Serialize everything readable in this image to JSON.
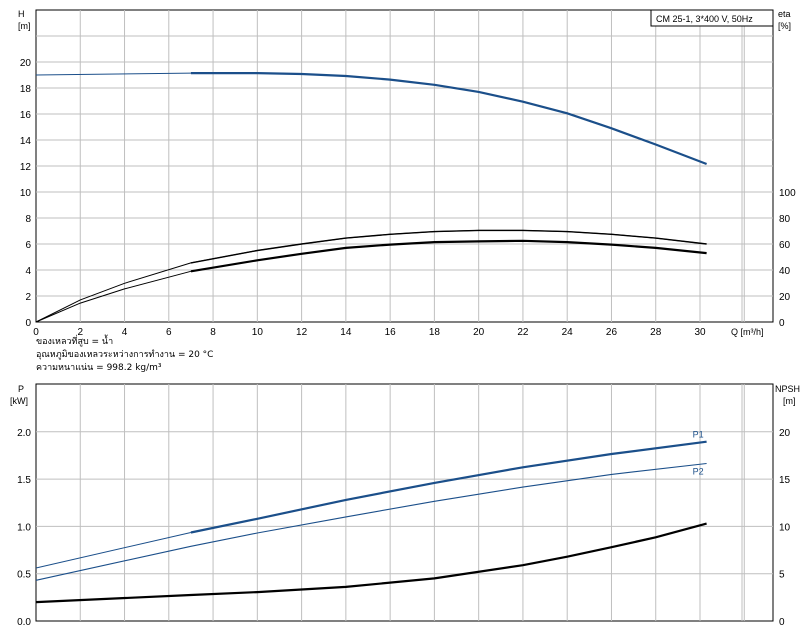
{
  "pump_title": "CM 25-1, 3*400 V, 50Hz",
  "fluid_notes": [
    "ของเหลวที่สูบ = น้ำ",
    "อุณหภูมิของเหลวระหว่างการทำงาน = 20 °C",
    "ความหนาแน่น = 998.2 kg/m³"
  ],
  "colors": {
    "blue": "#1b4f8a",
    "black": "#000000",
    "grid": "#bfbfbf"
  },
  "chart_data": [
    {
      "type": "line",
      "name": "head-efficiency",
      "x_axis": {
        "label": "Q [m³/h]",
        "range": [
          0,
          30
        ],
        "ticks": [
          "0",
          "2",
          "4",
          "6",
          "8",
          "10",
          "12",
          "14",
          "16",
          "18",
          "20",
          "22",
          "24",
          "26",
          "28",
          "30"
        ]
      },
      "y_left": {
        "label_line1": "H",
        "label_line2": "[m]",
        "range": [
          0,
          23
        ],
        "ticks": [
          "0",
          "2",
          "4",
          "6",
          "8",
          "10",
          "12",
          "14",
          "16",
          "18",
          "20"
        ]
      },
      "y_right": {
        "label_line1": "eta",
        "label_line2": "[%]",
        "range": [
          0,
          100
        ],
        "ticks": [
          "0",
          "20",
          "40",
          "60",
          "80",
          "100"
        ]
      },
      "grid": true,
      "series": [
        {
          "id": "H",
          "axis": "left",
          "color": "blue",
          "x": [
            0,
            7,
            10,
            12,
            14,
            16,
            18,
            20,
            22,
            24,
            26,
            28,
            30.3
          ],
          "y": [
            19.0,
            19.15,
            19.15,
            19.08,
            18.92,
            18.65,
            18.25,
            17.7,
            16.95,
            16.05,
            14.9,
            13.65,
            12.15
          ]
        },
        {
          "id": "eta-thin",
          "axis": "left",
          "color": "black",
          "x": [
            0,
            2,
            4,
            7,
            10,
            12,
            14,
            16,
            18,
            20,
            22,
            24,
            26,
            28,
            30.3
          ],
          "y": [
            0,
            1.7,
            2.98,
            4.55,
            5.5,
            6.0,
            6.45,
            6.75,
            6.95,
            7.05,
            7.05,
            6.95,
            6.75,
            6.45,
            6.0
          ]
        },
        {
          "id": "eta-thick",
          "axis": "left",
          "color": "black",
          "x": [
            0,
            2,
            4,
            7,
            10,
            12,
            14,
            16,
            18,
            20,
            22,
            24,
            26,
            28,
            30.3
          ],
          "y": [
            0,
            1.45,
            2.55,
            3.9,
            4.75,
            5.25,
            5.7,
            5.95,
            6.15,
            6.2,
            6.25,
            6.15,
            5.95,
            5.7,
            5.3
          ]
        }
      ]
    },
    {
      "type": "line",
      "name": "power-npsh",
      "x_axis": {
        "range": [
          0,
          30
        ]
      },
      "y_left": {
        "label_line1": "P",
        "label_line2": "[kW]",
        "range": [
          0,
          2.3
        ],
        "ticks": [
          "0.0",
          "0.5",
          "1.0",
          "1.5",
          "2.0"
        ]
      },
      "y_right": {
        "label_line1": "NPSH",
        "label_line2": "[m]",
        "range": [
          0,
          23
        ],
        "ticks": [
          "0",
          "5",
          "10",
          "15",
          "20"
        ]
      },
      "grid": true,
      "series": [
        {
          "id": "P1",
          "name": "P1",
          "axis": "left",
          "color": "blue",
          "x": [
            0,
            7,
            10,
            14,
            18,
            22,
            26,
            30.3
          ],
          "y": [
            0.56,
            0.935,
            1.08,
            1.28,
            1.46,
            1.625,
            1.765,
            1.895
          ]
        },
        {
          "id": "P2",
          "name": "P2",
          "axis": "left",
          "color": "blue",
          "x": [
            0,
            7,
            10,
            14,
            18,
            22,
            26,
            30.3
          ],
          "y": [
            0.43,
            0.79,
            0.93,
            1.1,
            1.265,
            1.415,
            1.55,
            1.665
          ]
        },
        {
          "id": "NPSH",
          "axis": "right",
          "color": "black",
          "x": [
            0,
            7,
            10,
            14,
            18,
            22,
            24,
            26,
            28,
            30.3
          ],
          "y": [
            2.0,
            2.75,
            3.05,
            3.6,
            4.5,
            5.9,
            6.8,
            7.8,
            8.85,
            10.3
          ]
        }
      ]
    }
  ]
}
